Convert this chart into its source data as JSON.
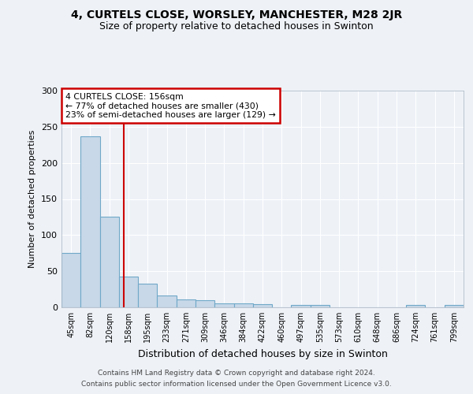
{
  "title1": "4, CURTELS CLOSE, WORSLEY, MANCHESTER, M28 2JR",
  "title2": "Size of property relative to detached houses in Swinton",
  "xlabel": "Distribution of detached houses by size in Swinton",
  "ylabel": "Number of detached properties",
  "bar_labels": [
    "45sqm",
    "82sqm",
    "120sqm",
    "158sqm",
    "195sqm",
    "233sqm",
    "271sqm",
    "309sqm",
    "346sqm",
    "384sqm",
    "422sqm",
    "460sqm",
    "497sqm",
    "535sqm",
    "573sqm",
    "610sqm",
    "648sqm",
    "686sqm",
    "724sqm",
    "761sqm",
    "799sqm"
  ],
  "bar_values": [
    75,
    237,
    125,
    43,
    33,
    16,
    11,
    10,
    5,
    6,
    4,
    0,
    3,
    3,
    0,
    0,
    0,
    0,
    3,
    0,
    3
  ],
  "bar_color": "#c8d8e8",
  "bar_edge_color": "#6fa8c8",
  "annotation_text": "4 CURTELS CLOSE: 156sqm\n← 77% of detached houses are smaller (430)\n23% of semi-detached houses are larger (129) →",
  "annotation_box_color": "#ffffff",
  "annotation_box_edge": "#cc0000",
  "vline_x_index": 2.77,
  "vline_color": "#cc0000",
  "ylim": [
    0,
    300
  ],
  "yticks": [
    0,
    50,
    100,
    150,
    200,
    250,
    300
  ],
  "footer1": "Contains HM Land Registry data © Crown copyright and database right 2024.",
  "footer2": "Contains public sector information licensed under the Open Government Licence v3.0.",
  "background_color": "#eef2f7",
  "grid_color": "#ffffff"
}
